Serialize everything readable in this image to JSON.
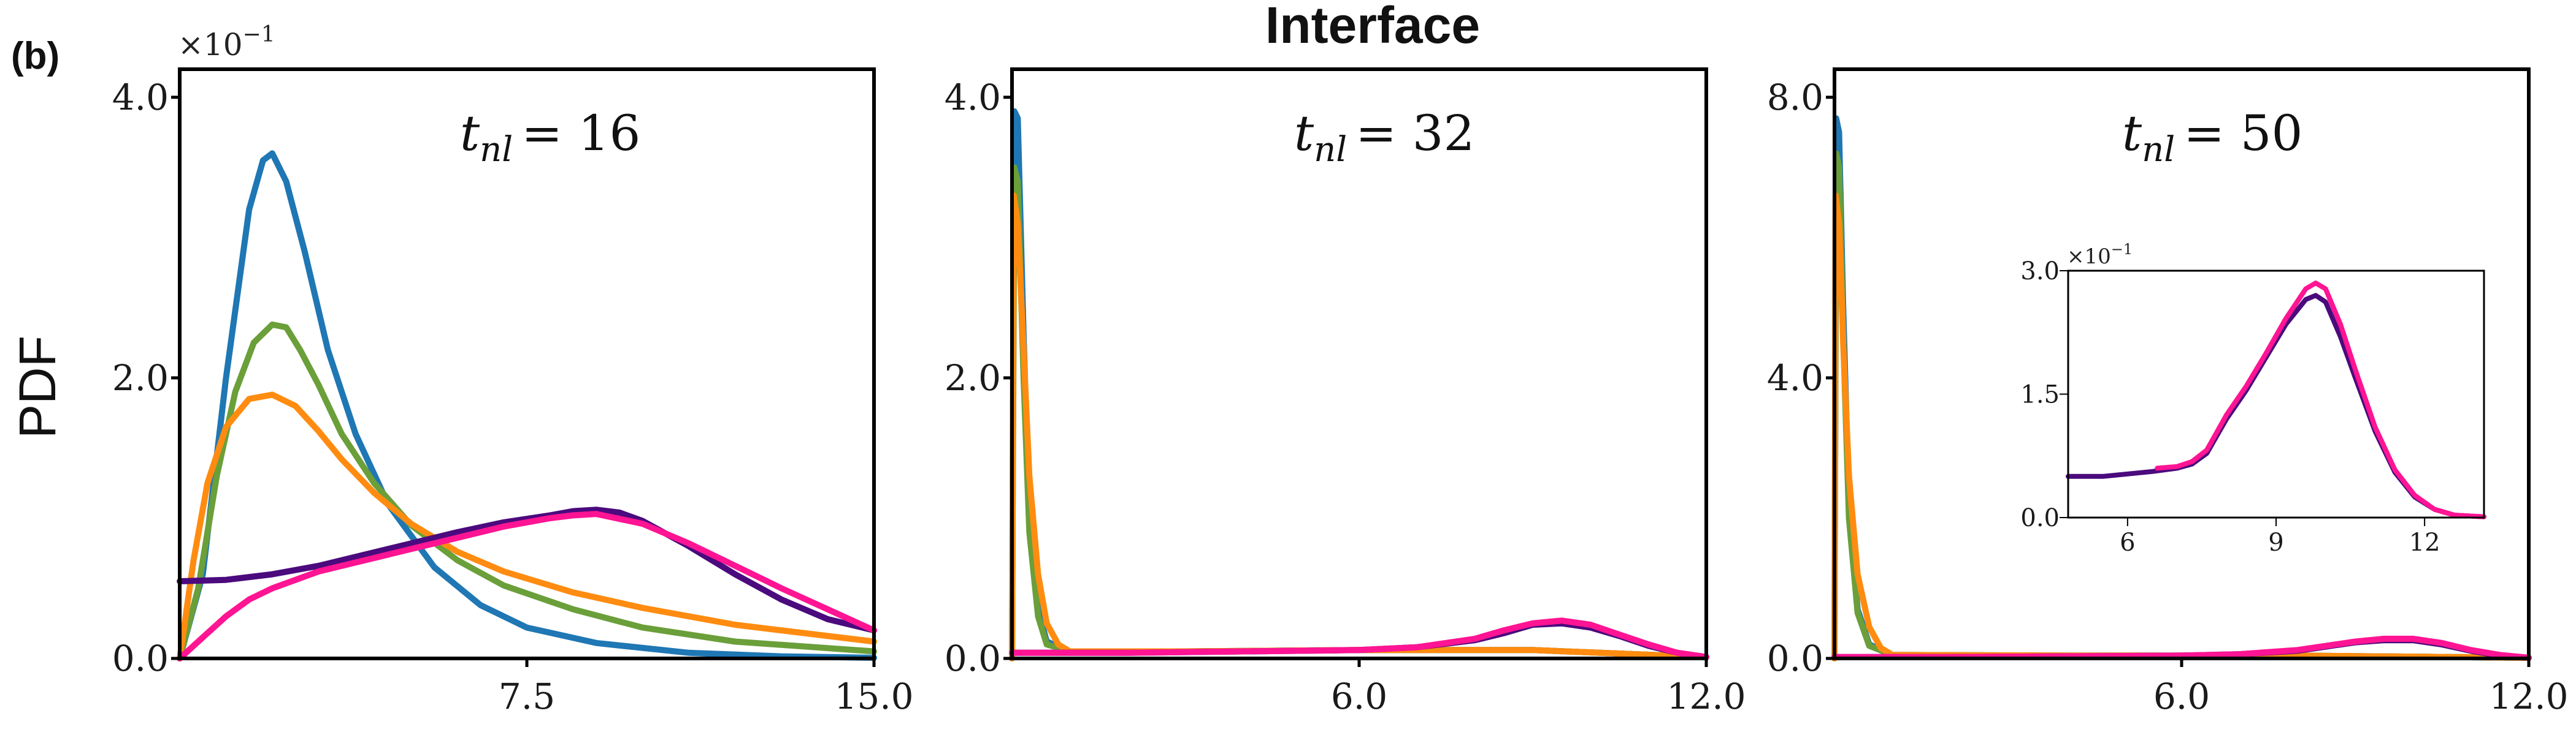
{
  "panel_label": "(b)",
  "title": "Interface",
  "ylabel": "PDF",
  "colors": {
    "blue": "#1f77b4",
    "green": "#6a9f3a",
    "orange": "#ff8c10",
    "indigo": "#4b0a7d",
    "magenta": "#ff1493"
  },
  "chart_data": [
    {
      "type": "line",
      "annotation": {
        "base": "t",
        "subscript": "nl",
        "value": "= 16"
      },
      "exponent_label": {
        "base": "×10",
        "exp": "−1"
      },
      "xlim": [
        0,
        15.0
      ],
      "ylim": [
        0,
        4.2
      ],
      "xticks": [
        7.5,
        15.0
      ],
      "xtick_labels": [
        "7.5",
        "15.0"
      ],
      "yticks": [
        0.0,
        2.0,
        4.0
      ],
      "ytick_labels": [
        "0.0",
        "2.0",
        "4.0"
      ],
      "series": [
        {
          "color": "blue",
          "x": [
            0,
            0.5,
            1.0,
            1.5,
            1.8,
            2.0,
            2.3,
            2.7,
            3.2,
            3.8,
            4.5,
            5.5,
            6.5,
            7.5,
            9,
            11,
            13,
            15
          ],
          "y": [
            0,
            0.6,
            2.0,
            3.2,
            3.55,
            3.6,
            3.4,
            2.9,
            2.2,
            1.6,
            1.1,
            0.65,
            0.38,
            0.22,
            0.11,
            0.04,
            0.015,
            0.005
          ]
        },
        {
          "color": "green",
          "x": [
            0,
            0.4,
            0.8,
            1.2,
            1.6,
            2.0,
            2.3,
            2.6,
            3.0,
            3.5,
            4.2,
            5,
            6,
            7,
            8.5,
            10,
            12,
            15
          ],
          "y": [
            0,
            0.5,
            1.3,
            1.9,
            2.25,
            2.38,
            2.36,
            2.2,
            1.95,
            1.6,
            1.25,
            0.95,
            0.7,
            0.52,
            0.35,
            0.22,
            0.12,
            0.05
          ]
        },
        {
          "color": "orange",
          "x": [
            0,
            0.3,
            0.6,
            1.0,
            1.5,
            2.0,
            2.5,
            3.0,
            3.5,
            4.2,
            5,
            6,
            7,
            8.5,
            10,
            12,
            15
          ],
          "y": [
            0,
            0.7,
            1.25,
            1.65,
            1.85,
            1.88,
            1.8,
            1.62,
            1.42,
            1.18,
            0.96,
            0.76,
            0.62,
            0.47,
            0.36,
            0.24,
            0.12
          ]
        },
        {
          "color": "indigo",
          "x": [
            0,
            1,
            2,
            3,
            4,
            5,
            6,
            7,
            8,
            8.5,
            9,
            9.5,
            10,
            11,
            12,
            13,
            14,
            15
          ],
          "y": [
            0.55,
            0.56,
            0.6,
            0.66,
            0.74,
            0.82,
            0.9,
            0.97,
            1.02,
            1.05,
            1.06,
            1.04,
            0.98,
            0.8,
            0.6,
            0.42,
            0.28,
            0.2
          ]
        },
        {
          "color": "magenta",
          "x": [
            0,
            0.5,
            1,
            1.5,
            2,
            3,
            4,
            5,
            6,
            7,
            8,
            8.5,
            9,
            10,
            11,
            12,
            13,
            14,
            15
          ],
          "y": [
            0,
            0.15,
            0.3,
            0.42,
            0.5,
            0.62,
            0.7,
            0.78,
            0.86,
            0.94,
            1.0,
            1.02,
            1.03,
            0.96,
            0.82,
            0.66,
            0.5,
            0.35,
            0.2
          ]
        }
      ]
    },
    {
      "type": "line",
      "annotation": {
        "base": "t",
        "subscript": "nl",
        "value": "= 32"
      },
      "xlim": [
        0,
        12.0
      ],
      "ylim": [
        0,
        4.2
      ],
      "xticks": [
        6.0,
        12.0
      ],
      "xtick_labels": [
        "6.0",
        "12.0"
      ],
      "yticks": [
        0.0,
        2.0,
        4.0
      ],
      "ytick_labels": [
        "0.0",
        "2.0",
        "4.0"
      ],
      "series": [
        {
          "color": "blue",
          "x": [
            0,
            0.04,
            0.1,
            0.2,
            0.3,
            0.45,
            0.6,
            1.0,
            3,
            6,
            9,
            12
          ],
          "y": [
            0,
            3.9,
            3.85,
            2.3,
            1.0,
            0.35,
            0.12,
            0.05,
            0.05,
            0.06,
            0.06,
            0.01
          ]
        },
        {
          "color": "green",
          "x": [
            0,
            0.04,
            0.1,
            0.2,
            0.3,
            0.45,
            0.6,
            1.0,
            3,
            6,
            9,
            12
          ],
          "y": [
            0,
            3.5,
            3.4,
            2.0,
            0.9,
            0.3,
            0.1,
            0.05,
            0.05,
            0.06,
            0.06,
            0.01
          ]
        },
        {
          "color": "orange",
          "x": [
            0,
            0.03,
            0.1,
            0.2,
            0.3,
            0.45,
            0.6,
            0.8,
            1.0,
            3,
            6,
            9,
            12
          ],
          "y": [
            0,
            3.3,
            3.1,
            2.2,
            1.3,
            0.6,
            0.25,
            0.1,
            0.05,
            0.05,
            0.06,
            0.06,
            0.01
          ]
        },
        {
          "color": "indigo",
          "x": [
            0,
            2,
            4,
            6,
            7,
            8,
            8.5,
            9,
            9.5,
            10,
            10.5,
            11,
            11.5,
            12
          ],
          "y": [
            0.04,
            0.04,
            0.05,
            0.06,
            0.08,
            0.13,
            0.18,
            0.24,
            0.25,
            0.22,
            0.16,
            0.09,
            0.04,
            0.01
          ]
        },
        {
          "color": "magenta",
          "x": [
            0,
            2,
            4,
            6,
            7,
            8,
            8.5,
            9,
            9.5,
            10,
            10.5,
            11,
            11.5,
            12
          ],
          "y": [
            0.04,
            0.04,
            0.05,
            0.06,
            0.08,
            0.14,
            0.2,
            0.25,
            0.27,
            0.24,
            0.17,
            0.1,
            0.04,
            0.01
          ]
        }
      ]
    },
    {
      "type": "line",
      "annotation": {
        "base": "t",
        "subscript": "nl",
        "value": "= 50"
      },
      "xlim": [
        0,
        12.0
      ],
      "ylim": [
        0,
        8.4
      ],
      "xticks": [
        6.0,
        12.0
      ],
      "xtick_labels": [
        "6.0",
        "12.0"
      ],
      "yticks": [
        0.0,
        4.0,
        8.0
      ],
      "ytick_labels": [
        "0.0",
        "4.0",
        "8.0"
      ],
      "series": [
        {
          "color": "blue",
          "x": [
            0,
            0.03,
            0.08,
            0.15,
            0.25,
            0.4,
            0.6,
            1.0,
            4,
            8,
            12
          ],
          "y": [
            0,
            7.7,
            7.5,
            5.0,
            2.2,
            0.7,
            0.2,
            0.05,
            0.04,
            0.04,
            0.01
          ]
        },
        {
          "color": "green",
          "x": [
            0,
            0.03,
            0.08,
            0.15,
            0.25,
            0.4,
            0.6,
            1.0,
            4,
            8,
            12
          ],
          "y": [
            0,
            7.2,
            7.0,
            4.6,
            2.0,
            0.65,
            0.18,
            0.05,
            0.04,
            0.04,
            0.01
          ]
        },
        {
          "color": "orange",
          "x": [
            0,
            0.02,
            0.08,
            0.15,
            0.25,
            0.4,
            0.6,
            0.8,
            1.0,
            4,
            8,
            12
          ],
          "y": [
            0,
            6.6,
            6.2,
            4.5,
            2.6,
            1.2,
            0.45,
            0.15,
            0.05,
            0.04,
            0.04,
            0.01
          ]
        },
        {
          "color": "indigo",
          "x": [
            0,
            2,
            4,
            6,
            7,
            8,
            8.5,
            9,
            9.5,
            10,
            10.5,
            11,
            11.5,
            12
          ],
          "y": [
            0.02,
            0.02,
            0.03,
            0.04,
            0.06,
            0.11,
            0.17,
            0.23,
            0.26,
            0.26,
            0.2,
            0.11,
            0.04,
            0.01
          ]
        },
        {
          "color": "magenta",
          "x": [
            0,
            2,
            4,
            6,
            7,
            8,
            8.5,
            9,
            9.5,
            10,
            10.5,
            11,
            11.5,
            12
          ],
          "y": [
            0.02,
            0.02,
            0.03,
            0.04,
            0.06,
            0.12,
            0.18,
            0.24,
            0.28,
            0.28,
            0.22,
            0.12,
            0.05,
            0.01
          ]
        }
      ]
    },
    {
      "type": "line",
      "exponent_label": {
        "base": "×10",
        "exp": "−1"
      },
      "xlim": [
        4.8,
        13.2
      ],
      "ylim": [
        0,
        3.0
      ],
      "xticks": [
        6,
        9,
        12
      ],
      "xtick_labels": [
        "6",
        "9",
        "12"
      ],
      "yticks": [
        0.0,
        1.5,
        3.0
      ],
      "ytick_labels": [
        "0.0",
        "1.5",
        "3.0"
      ],
      "series": [
        {
          "color": "indigo",
          "x": [
            4.8,
            5.5,
            6,
            6.5,
            7,
            7.3,
            7.6,
            8,
            8.4,
            8.8,
            9.2,
            9.6,
            9.8,
            10,
            10.3,
            10.6,
            11,
            11.4,
            11.8,
            12.2,
            12.6,
            13.2
          ],
          "y": [
            0.5,
            0.5,
            0.53,
            0.56,
            0.6,
            0.65,
            0.78,
            1.2,
            1.55,
            1.95,
            2.35,
            2.65,
            2.7,
            2.62,
            2.2,
            1.7,
            1.05,
            0.55,
            0.25,
            0.1,
            0.03,
            0.01
          ]
        },
        {
          "color": "magenta",
          "x": [
            6.6,
            7,
            7.3,
            7.6,
            8,
            8.4,
            8.8,
            9.2,
            9.6,
            9.8,
            10,
            10.3,
            10.6,
            11,
            11.4,
            11.8,
            12.2,
            12.6,
            13.2
          ],
          "y": [
            0.6,
            0.62,
            0.68,
            0.82,
            1.25,
            1.6,
            2.0,
            2.42,
            2.78,
            2.85,
            2.78,
            2.35,
            1.8,
            1.1,
            0.58,
            0.27,
            0.1,
            0.03,
            0.01
          ]
        }
      ]
    }
  ]
}
